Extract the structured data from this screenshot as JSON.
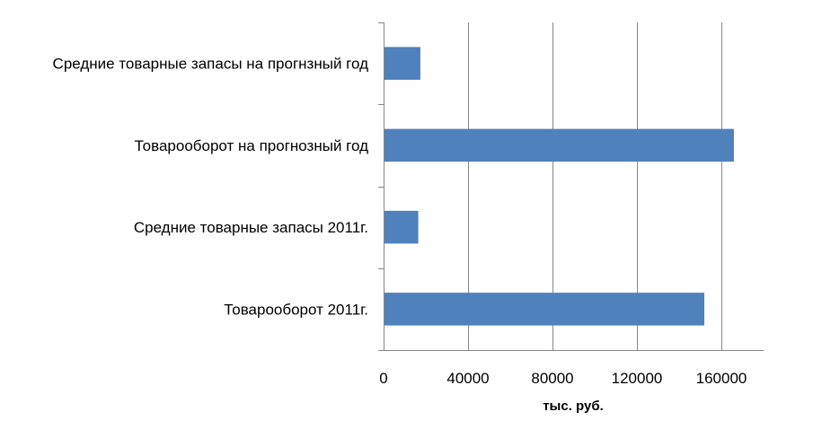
{
  "chart_data": {
    "type": "bar",
    "orientation": "horizontal",
    "categories": [
      "Средние товарные запасы на прогнзный год",
      "Товарооборот на прогнозный год",
      "Средние товарные запасы 2011г.",
      "Товарооборот 2011г."
    ],
    "values": [
      17000,
      165500,
      16000,
      151500
    ],
    "xlabel": "тыс. руб.",
    "xlim": [
      0,
      180000
    ],
    "xticks": [
      0,
      40000,
      80000,
      120000,
      160000
    ],
    "xtick_labels": [
      "0",
      "40000",
      "80000",
      "120000",
      "160000"
    ],
    "grid": "vertical",
    "legend": "none",
    "bar_color": "#4F81BD"
  }
}
